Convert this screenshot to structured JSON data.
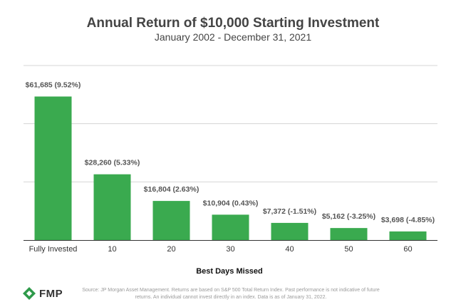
{
  "chart_data": {
    "type": "bar",
    "title": "Annual Return of $10,000 Starting Investment",
    "subtitle": "January 2002 - December 31, 2021",
    "xlabel": "Best Days Missed",
    "ylabel": "",
    "categories": [
      "Fully Invested",
      "10",
      "20",
      "30",
      "40",
      "50",
      "60"
    ],
    "values": [
      61685,
      28260,
      16804,
      10904,
      7372,
      5162,
      3698
    ],
    "data_labels": [
      "$61,685 (9.52%)",
      "$28,260 (5.33%)",
      "$16,804 (2.63%)",
      "$10,904 (0.43%)",
      "$7,372 (-1.51%)",
      "$5,162 (-3.25%)",
      "$3,698 (-4.85%)"
    ],
    "ylim": [
      0,
      75000
    ],
    "gridlines": [
      25000,
      50000,
      75000
    ],
    "grid": true,
    "bar_color": "#3aaa4f"
  },
  "footer": {
    "source": "Source: JP Morgan Asset Management. Returns are based on S&P 500 Total Return Index. Past performance is not indicative of future returns. An individual cannot invest directly in an index. Data is as of January 31, 2022.",
    "logo_text": "FMP",
    "logo_color": "#2e9a4a"
  }
}
